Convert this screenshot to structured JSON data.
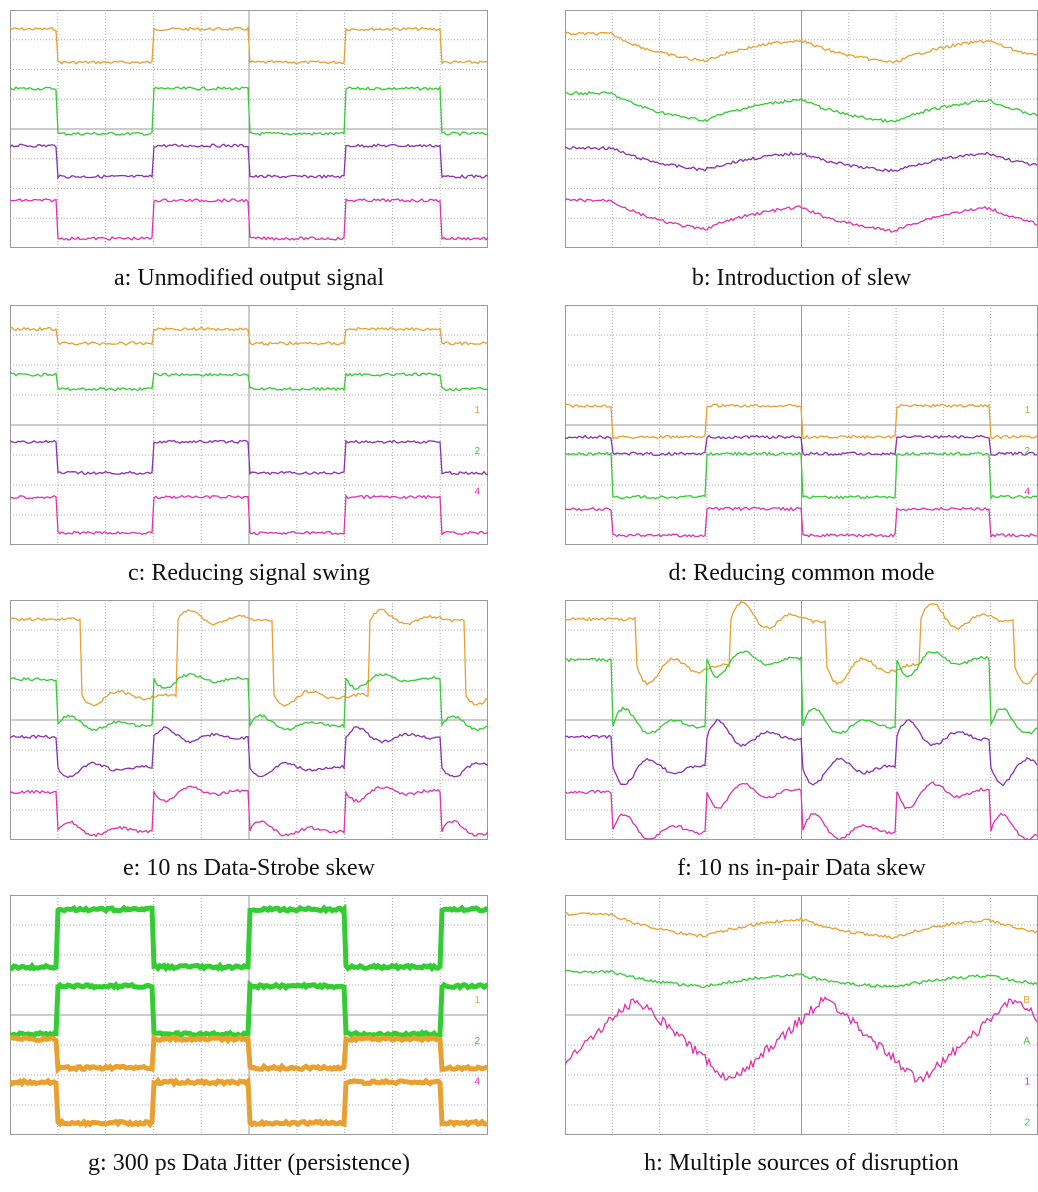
{
  "panels": [
    {
      "caption": "a: Unmodified output signal",
      "labels": []
    },
    {
      "caption": "b: Introduction of slew",
      "labels": []
    },
    {
      "caption": "c: Reducing signal swing",
      "labels": [
        "1",
        "2",
        "4"
      ]
    },
    {
      "caption": "d: Reducing common mode",
      "labels": [
        "1",
        "2",
        "4"
      ]
    },
    {
      "caption": "e: 10 ns Data-Strobe skew",
      "labels": []
    },
    {
      "caption": "f: 10 ns in-pair Data skew",
      "labels": []
    },
    {
      "caption": "g: 300 ps Data Jitter (persistence)",
      "labels": [
        "1",
        "2",
        "4"
      ]
    },
    {
      "caption": "h: Multiple sources of disruption",
      "labels": [
        "B",
        "A",
        "1",
        "2"
      ]
    }
  ]
}
